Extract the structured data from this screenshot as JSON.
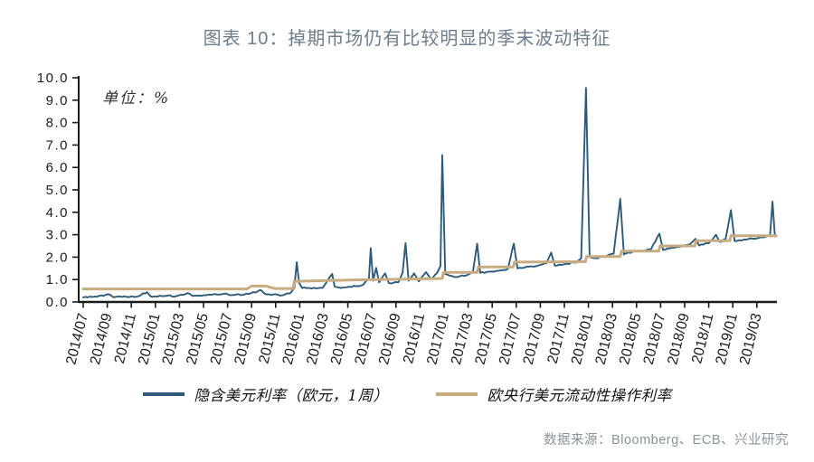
{
  "title": "图表 10：掉期市场仍有比较明显的季末波动特征",
  "unit_label": "单位：%",
  "source": "数据来源：Bloomberg、ECB、兴业研究",
  "colors": {
    "implied_rate_line": "#2e5a78",
    "ecb_rate_line": "#c7ac81",
    "title_text": "#6e7d8c",
    "axis": "#1a1a1a",
    "source_text": "#8a939b"
  },
  "legend": {
    "items": [
      {
        "label": "隐含美元利率（欧元，1周）",
        "color": "#2e5a78"
      },
      {
        "label": "欧央行美元流动性操作利率",
        "color": "#c7ac81"
      }
    ]
  },
  "chart_data": {
    "type": "line",
    "title": "掉期市场仍有比较明显的季末波动特征",
    "ylabel": "单位：%",
    "ylim": [
      0,
      10
    ],
    "y_tick_labels": [
      "0.0",
      "1.0",
      "2.0",
      "3.0",
      "4.0",
      "5.0",
      "6.0",
      "7.0",
      "8.0",
      "9.0",
      "10.0"
    ],
    "x_tick_labels": [
      "2014/07",
      "2014/09",
      "2014/11",
      "2015/01",
      "2015/03",
      "2015/05",
      "2015/07",
      "2015/09",
      "2015/11",
      "2016/01",
      "2016/03",
      "2016/05",
      "2016/07",
      "2016/09",
      "2016/11",
      "2017/01",
      "2017/03",
      "2017/05",
      "2017/07",
      "2017/09",
      "2017/11",
      "2018/01",
      "2018/03",
      "2018/05",
      "2018/07",
      "2018/09",
      "2018/11",
      "2019/01",
      "2019/03"
    ],
    "x_origin_label": "2014/07",
    "x_unit": "months_since_2014_07",
    "x_range": [
      0,
      57.7
    ],
    "grid": false,
    "legend_position": "bottom",
    "series": [
      {
        "name": "隐含美元利率（欧元，1周）",
        "color": "#2e5a78",
        "style": "noisy-line",
        "points": [
          [
            0,
            0.2
          ],
          [
            0.8,
            0.22
          ],
          [
            2.2,
            0.33
          ],
          [
            2.5,
            0.21
          ],
          [
            3.5,
            0.24
          ],
          [
            4.6,
            0.26
          ],
          [
            5.3,
            0.44
          ],
          [
            5.6,
            0.25
          ],
          [
            6.5,
            0.27
          ],
          [
            7.8,
            0.27
          ],
          [
            8.8,
            0.38
          ],
          [
            9.1,
            0.27
          ],
          [
            10.2,
            0.3
          ],
          [
            11.3,
            0.33
          ],
          [
            11.85,
            0.38
          ],
          [
            12.2,
            0.3
          ],
          [
            13.4,
            0.33
          ],
          [
            14.8,
            0.52
          ],
          [
            15.1,
            0.36
          ],
          [
            15.8,
            0.34
          ],
          [
            16.6,
            0.3
          ],
          [
            17.2,
            0.38
          ],
          [
            17.55,
            0.62
          ],
          [
            17.75,
            1.78
          ],
          [
            17.95,
            0.85
          ],
          [
            18.2,
            0.62
          ],
          [
            19.0,
            0.6
          ],
          [
            19.9,
            0.63
          ],
          [
            20.7,
            1.25
          ],
          [
            20.9,
            0.68
          ],
          [
            21.6,
            0.65
          ],
          [
            22.6,
            0.7
          ],
          [
            23.3,
            0.78
          ],
          [
            23.75,
            1.05
          ],
          [
            23.9,
            2.4
          ],
          [
            24.1,
            0.95
          ],
          [
            24.35,
            1.52
          ],
          [
            24.6,
            0.88
          ],
          [
            25.1,
            1.28
          ],
          [
            25.4,
            0.85
          ],
          [
            26.2,
            0.88
          ],
          [
            26.55,
            1.3
          ],
          [
            26.8,
            2.62
          ],
          [
            27.05,
            0.95
          ],
          [
            27.5,
            1.28
          ],
          [
            27.9,
            0.92
          ],
          [
            28.5,
            1.33
          ],
          [
            28.9,
            1.02
          ],
          [
            29.4,
            1.28
          ],
          [
            29.7,
            1.6
          ],
          [
            29.85,
            6.55
          ],
          [
            30.1,
            1.25
          ],
          [
            30.8,
            1.12
          ],
          [
            31.8,
            1.18
          ],
          [
            32.4,
            1.35
          ],
          [
            32.75,
            2.6
          ],
          [
            33.0,
            1.3
          ],
          [
            33.8,
            1.35
          ],
          [
            34.6,
            1.4
          ],
          [
            35.3,
            1.48
          ],
          [
            35.8,
            2.6
          ],
          [
            36.1,
            1.5
          ],
          [
            36.9,
            1.58
          ],
          [
            37.8,
            1.62
          ],
          [
            38.5,
            1.72
          ],
          [
            38.9,
            2.2
          ],
          [
            39.2,
            1.62
          ],
          [
            40.0,
            1.68
          ],
          [
            40.9,
            1.75
          ],
          [
            41.4,
            1.95
          ],
          [
            41.8,
            9.55
          ],
          [
            42.1,
            2.02
          ],
          [
            42.6,
            1.95
          ],
          [
            43.4,
            2.02
          ],
          [
            44.1,
            2.15
          ],
          [
            44.65,
            4.6
          ],
          [
            44.95,
            2.12
          ],
          [
            45.6,
            2.22
          ],
          [
            46.4,
            2.28
          ],
          [
            47.2,
            2.35
          ],
          [
            47.9,
            3.05
          ],
          [
            48.2,
            2.32
          ],
          [
            49.0,
            2.42
          ],
          [
            49.8,
            2.48
          ],
          [
            50.5,
            2.6
          ],
          [
            50.9,
            2.82
          ],
          [
            51.2,
            2.52
          ],
          [
            52.0,
            2.62
          ],
          [
            52.6,
            3.0
          ],
          [
            52.9,
            2.68
          ],
          [
            53.4,
            2.8
          ],
          [
            53.85,
            4.1
          ],
          [
            54.15,
            2.72
          ],
          [
            54.9,
            2.78
          ],
          [
            55.7,
            2.82
          ],
          [
            56.5,
            2.88
          ],
          [
            57.1,
            2.96
          ],
          [
            57.3,
            4.48
          ],
          [
            57.5,
            2.92
          ]
        ]
      },
      {
        "name": "欧央行美元流动性操作利率",
        "color": "#c7ac81",
        "style": "step-line",
        "points": [
          [
            0,
            0.58
          ],
          [
            13.6,
            0.58
          ],
          [
            14.0,
            0.71
          ],
          [
            15.2,
            0.71
          ],
          [
            15.9,
            0.6
          ],
          [
            17.45,
            0.6
          ],
          [
            17.55,
            0.92
          ],
          [
            20,
            0.95
          ],
          [
            24,
            1.0
          ],
          [
            28,
            1.03
          ],
          [
            29.85,
            1.05
          ],
          [
            29.95,
            1.32
          ],
          [
            32.75,
            1.32
          ],
          [
            32.85,
            1.56
          ],
          [
            35.75,
            1.56
          ],
          [
            35.85,
            1.78
          ],
          [
            41.75,
            1.8
          ],
          [
            41.85,
            2.03
          ],
          [
            44.65,
            2.03
          ],
          [
            44.75,
            2.27
          ],
          [
            47.85,
            2.27
          ],
          [
            47.95,
            2.5
          ],
          [
            50.85,
            2.5
          ],
          [
            50.95,
            2.73
          ],
          [
            53.75,
            2.73
          ],
          [
            53.85,
            2.95
          ],
          [
            57.6,
            2.95
          ]
        ]
      }
    ]
  }
}
